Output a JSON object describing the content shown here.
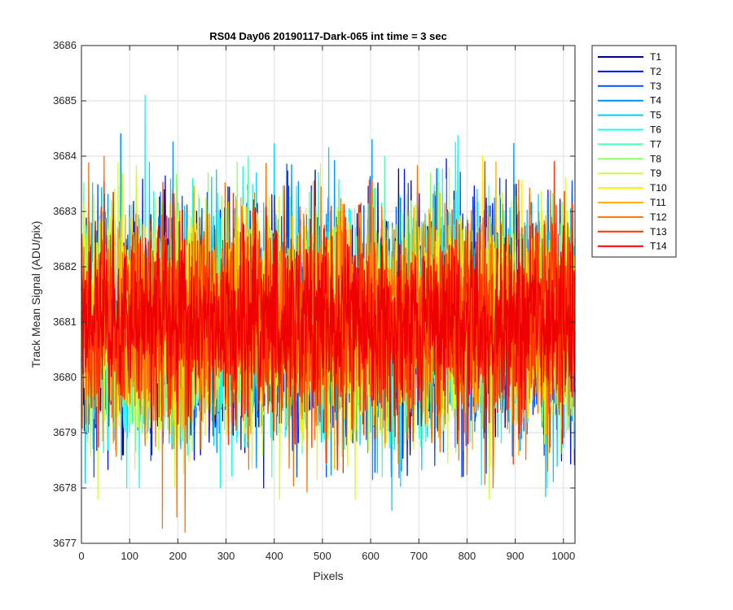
{
  "chart_data": {
    "type": "line",
    "title": "RS04 Day06 20190117-Dark-065 int time = 3 sec",
    "xlabel": "Pixels",
    "ylabel": "Track Mean Signal (ADU/pix)",
    "xlim": [
      0,
      1024
    ],
    "ylim": [
      3677,
      3686
    ],
    "xticks": [
      0,
      100,
      200,
      300,
      400,
      500,
      600,
      700,
      800,
      900,
      1000
    ],
    "yticks": [
      3677,
      3678,
      3679,
      3680,
      3681,
      3682,
      3683,
      3684,
      3685,
      3686
    ],
    "grid": true,
    "legend_position": "outside-top-right",
    "series": [
      {
        "name": "T1",
        "color": "#00008f",
        "mean": 3681.0,
        "min": 3678.6,
        "max": 3684.6
      },
      {
        "name": "T2",
        "color": "#0010ff",
        "mean": 3681.0,
        "min": 3678.0,
        "max": 3684.5
      },
      {
        "name": "T3",
        "color": "#0050ff",
        "mean": 3681.0,
        "min": 3678.2,
        "max": 3684.4
      },
      {
        "name": "T4",
        "color": "#0090ff",
        "mean": 3681.0,
        "min": 3678.0,
        "max": 3684.3
      },
      {
        "name": "T5",
        "color": "#00d0ff",
        "mean": 3681.0,
        "min": 3677.6,
        "max": 3684.4
      },
      {
        "name": "T6",
        "color": "#10ffef",
        "mean": 3681.0,
        "min": 3678.0,
        "max": 3685.1
      },
      {
        "name": "T7",
        "color": "#50ffaf",
        "mean": 3681.0,
        "min": 3678.2,
        "max": 3684.0
      },
      {
        "name": "T8",
        "color": "#90ff6f",
        "mean": 3681.0,
        "min": 3678.3,
        "max": 3684.2
      },
      {
        "name": "T9",
        "color": "#cfff30",
        "mean": 3681.0,
        "min": 3677.8,
        "max": 3684.6
      },
      {
        "name": "T10",
        "color": "#ffef00",
        "mean": 3681.0,
        "min": 3678.4,
        "max": 3684.0
      },
      {
        "name": "T11",
        "color": "#ffaf00",
        "mean": 3681.0,
        "min": 3678.3,
        "max": 3683.9
      },
      {
        "name": "T12",
        "color": "#ff7000",
        "mean": 3681.0,
        "min": 3677.2,
        "max": 3684.0
      },
      {
        "name": "T13",
        "color": "#ff3000",
        "mean": 3681.0,
        "min": 3677.6,
        "max": 3683.9
      },
      {
        "name": "T14",
        "color": "#ef0000",
        "mean": 3681.0,
        "min": 3678.8,
        "max": 3683.8
      }
    ]
  }
}
